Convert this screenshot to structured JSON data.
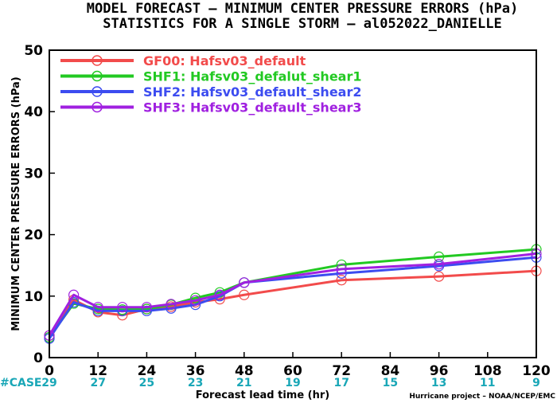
{
  "title_line1": "MODEL FORECAST – MINIMUM CENTER PRESSURE ERRORS (hPa)",
  "title_line2": "STATISTICS FOR A SINGLE STORM – al052022_DANIELLE",
  "case_label": "#CASE",
  "case_counts": [
    "29",
    "27",
    "25",
    "23",
    "21",
    "19",
    "17",
    "15",
    "13",
    "11",
    "9"
  ],
  "credit": "Hurricane project – NOAA/NCEP/EMC",
  "chart_data": {
    "type": "line",
    "title": "MODEL FORECAST – MINIMUM CENTER PRESSURE ERRORS (hPa)",
    "subtitle": "STATISTICS FOR A SINGLE STORM – al052022_DANIELLE",
    "xlabel": "Forecast lead time (hr)",
    "ylabel": "MINIMUM CENTER PRESSURE ERRORS (hPa)",
    "xlim": [
      0,
      120
    ],
    "ylim": [
      0,
      50
    ],
    "xticks": [
      0,
      12,
      24,
      36,
      48,
      60,
      72,
      84,
      96,
      108,
      120
    ],
    "yticks": [
      0,
      10,
      20,
      30,
      40,
      50
    ],
    "legend_position": "top-left",
    "x": [
      0,
      6,
      12,
      18,
      24,
      30,
      36,
      42,
      48,
      72,
      96,
      120
    ],
    "series": [
      {
        "name": "GF00: Hafsv03_default",
        "color": "#f24b4b",
        "values": [
          3.6,
          9.4,
          7.4,
          6.9,
          7.9,
          8.3,
          9.0,
          9.5,
          10.2,
          12.6,
          13.2,
          14.1
        ]
      },
      {
        "name": "SHF1: Hafsv03_defalut_shear1",
        "color": "#22c922",
        "values": [
          3.3,
          8.8,
          7.9,
          7.8,
          7.9,
          8.6,
          9.7,
          10.6,
          12.2,
          15.1,
          16.4,
          17.6
        ]
      },
      {
        "name": "SHF2: Hafsv03_default_shear2",
        "color": "#3c4cf0",
        "values": [
          3.1,
          9.0,
          7.6,
          7.6,
          7.6,
          8.0,
          8.6,
          10.0,
          12.2,
          13.7,
          14.9,
          16.3
        ]
      },
      {
        "name": "SHF3: Hafsv03_default_shear3",
        "color": "#a020e0",
        "values": [
          3.6,
          10.2,
          8.2,
          8.2,
          8.2,
          8.7,
          9.3,
          10.2,
          12.2,
          14.4,
          15.2,
          16.9
        ]
      }
    ]
  }
}
